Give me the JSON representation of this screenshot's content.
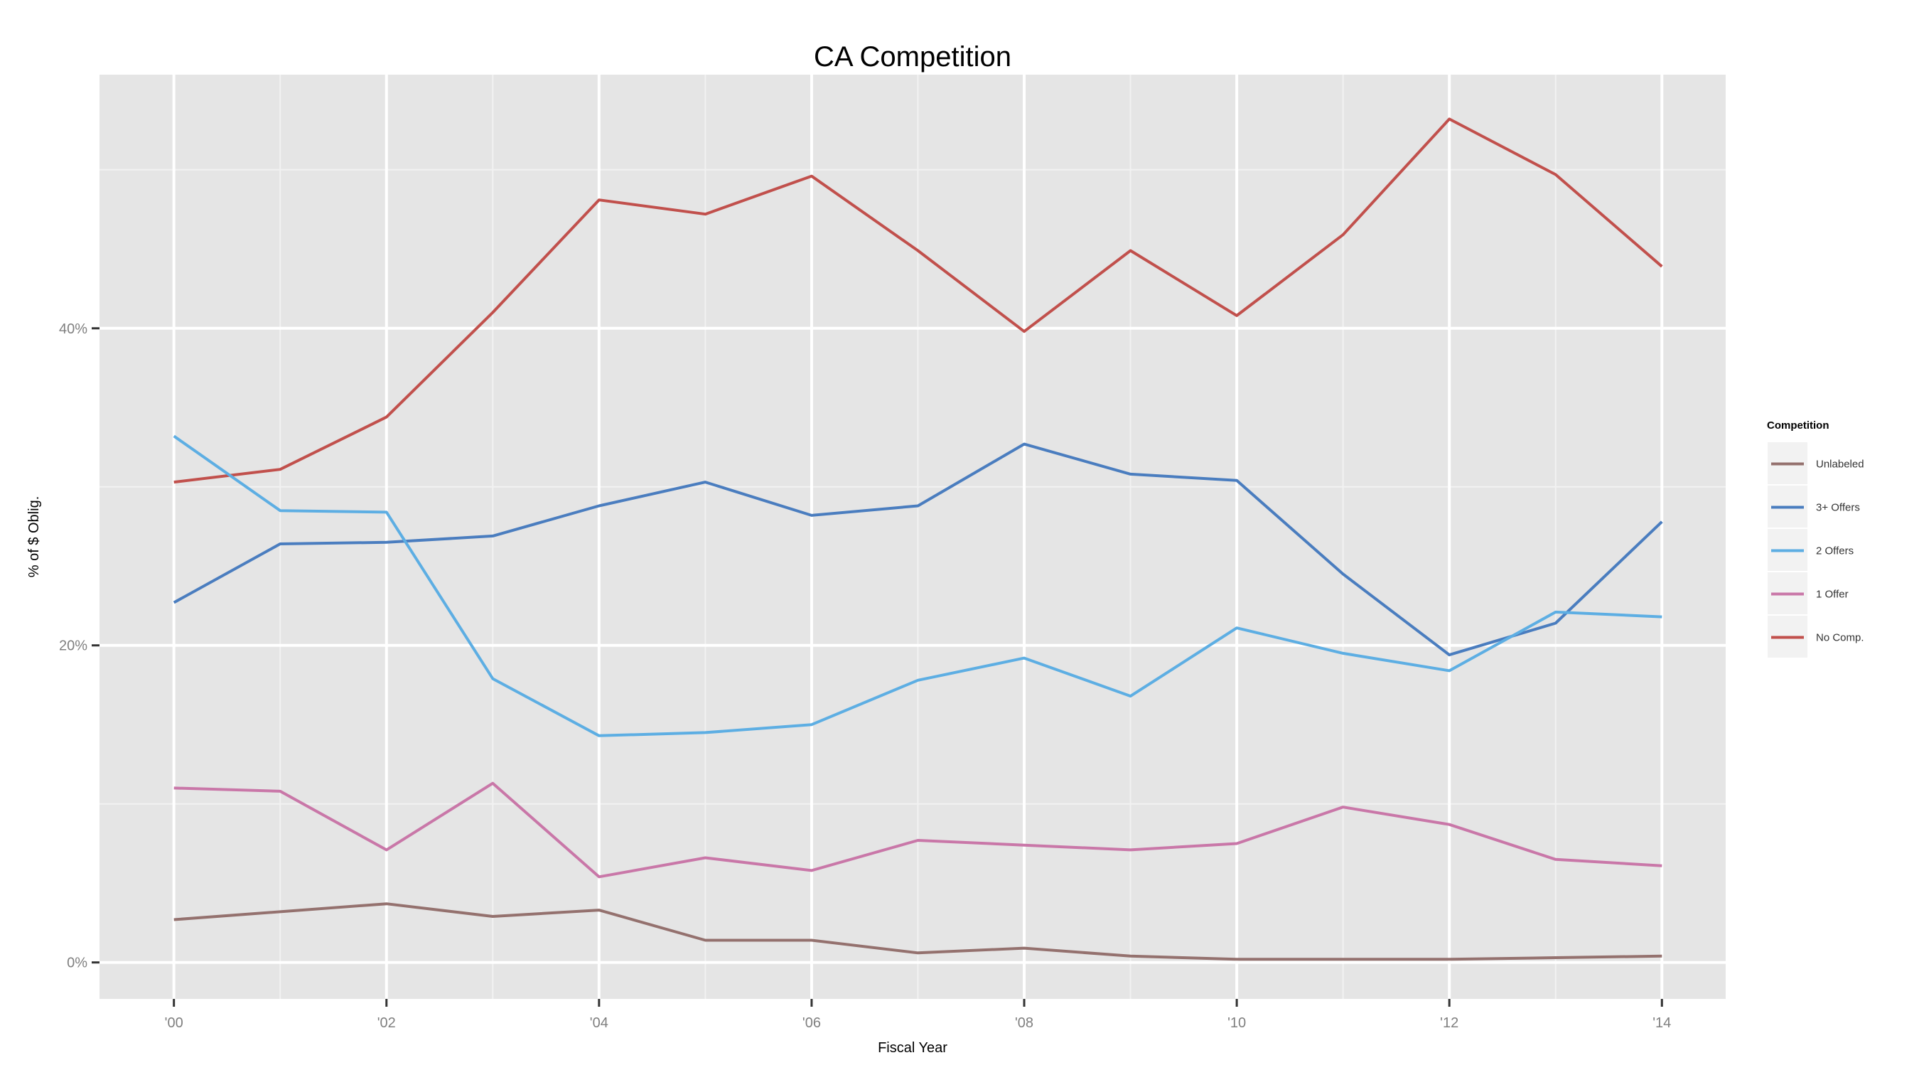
{
  "chart_data": {
    "type": "line",
    "title": "CA Competition",
    "xlabel": "Fiscal Year",
    "ylabel": "% of $ Oblig.",
    "x": [
      2000,
      2001,
      2002,
      2003,
      2004,
      2005,
      2006,
      2007,
      2008,
      2009,
      2010,
      2011,
      2012,
      2013,
      2014
    ],
    "xlim": [
      1999.3,
      2014.6
    ],
    "ylim": [
      -2.3,
      56.0
    ],
    "x_ticks": [
      2000,
      2002,
      2004,
      2006,
      2008,
      2010,
      2012,
      2014
    ],
    "x_tick_labels": [
      "'00",
      "'02",
      "'04",
      "'06",
      "'08",
      "'10",
      "'12",
      "'14"
    ],
    "y_ticks": [
      0,
      20,
      40
    ],
    "y_tick_labels": [
      "0%",
      "20%",
      "40%"
    ],
    "grid": true,
    "legend": {
      "title": "Competition",
      "position": "right",
      "order": [
        "Unlabeled",
        "3+ Offers",
        "2 Offers",
        "1 Offer",
        "No Comp."
      ]
    },
    "series": [
      {
        "name": "No Comp.",
        "color": "#c1504c",
        "values": [
          30.3,
          31.1,
          34.4,
          41.0,
          48.1,
          47.2,
          49.6,
          44.9,
          39.8,
          44.9,
          40.8,
          45.9,
          53.2,
          49.7,
          43.9
        ]
      },
      {
        "name": "3+ Offers",
        "color": "#4a7dbf",
        "values": [
          22.7,
          26.4,
          26.5,
          26.9,
          28.8,
          30.3,
          28.2,
          28.8,
          32.7,
          30.8,
          30.4,
          24.5,
          19.4,
          21.4,
          27.8
        ]
      },
      {
        "name": "2 Offers",
        "color": "#5daee3",
        "values": [
          33.2,
          28.5,
          28.4,
          17.9,
          14.3,
          14.5,
          15.0,
          17.8,
          19.2,
          16.8,
          21.1,
          19.5,
          18.4,
          22.1,
          21.8
        ]
      },
      {
        "name": "1 Offer",
        "color": "#c977a8",
        "values": [
          11.0,
          10.8,
          7.1,
          11.3,
          5.4,
          6.6,
          5.8,
          7.7,
          7.4,
          7.1,
          7.5,
          9.8,
          8.7,
          6.5,
          6.1
        ]
      },
      {
        "name": "Unlabeled",
        "color": "#94716e",
        "values": [
          2.7,
          3.2,
          3.7,
          2.9,
          3.3,
          1.4,
          1.4,
          0.6,
          0.9,
          0.4,
          0.2,
          0.2,
          0.2,
          0.3,
          0.4
        ]
      }
    ]
  }
}
